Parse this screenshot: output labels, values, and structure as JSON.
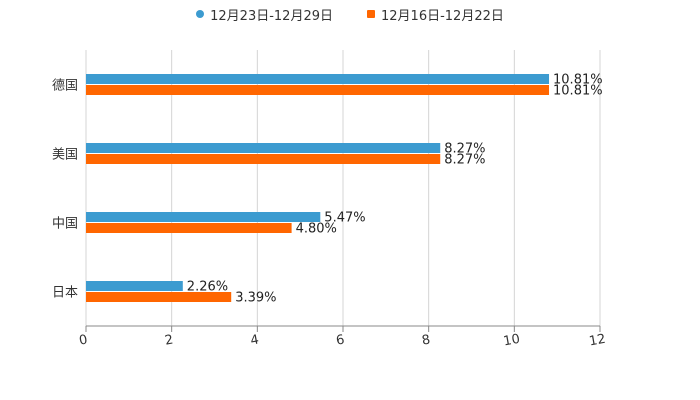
{
  "chart_data": {
    "type": "bar",
    "orientation": "horizontal",
    "title": "",
    "xlabel": "",
    "ylabel": "",
    "categories": [
      "德国",
      "美国",
      "中国",
      "日本"
    ],
    "series": [
      {
        "name": "12月23日-12月29日",
        "color": "#3c9bd0",
        "values": [
          10.81,
          8.27,
          5.47,
          2.26
        ]
      },
      {
        "name": "12月16日-12月22日",
        "color": "#ff6600",
        "values": [
          10.81,
          8.27,
          4.8,
          3.39
        ]
      }
    ],
    "data_labels": [
      [
        "10.81%",
        "8.27%",
        "5.47%",
        "2.26%"
      ],
      [
        "10.81%",
        "8.27%",
        "4.80%",
        "3.39%"
      ]
    ],
    "xlim": [
      0,
      12
    ],
    "xticks": [
      "0",
      "2",
      "4",
      "6",
      "8",
      "10",
      "12"
    ],
    "grid": true,
    "legend_position": "top-center"
  }
}
